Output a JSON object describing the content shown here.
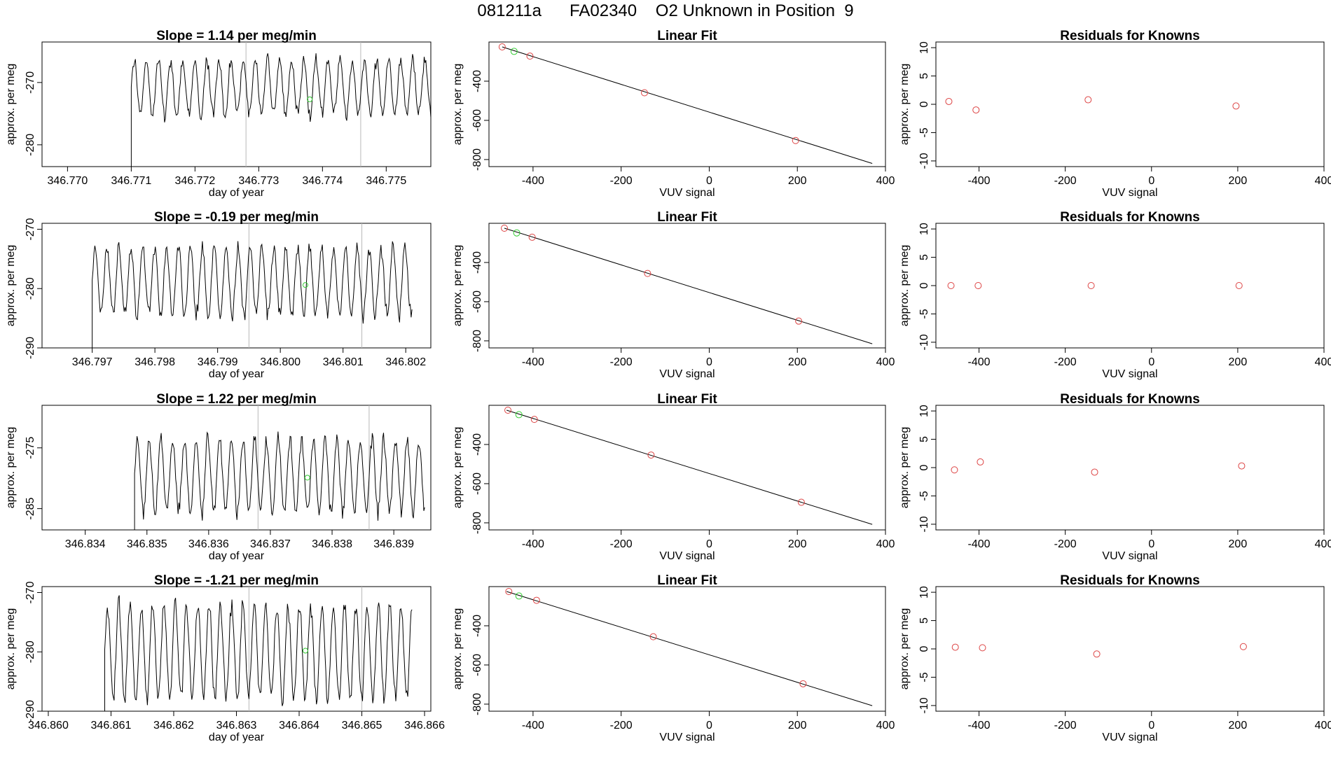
{
  "page": {
    "title": "081211a      FA02340    O2 Unknown in Position  9"
  },
  "labels": {
    "ylabel": "approx. per meg",
    "time_xlabel": "day of year",
    "fit_xlabel": "VUV signal",
    "fit_title": "Linear Fit",
    "resid_title": "Residuals for Knowns"
  },
  "colors": {
    "known": "#dd4444",
    "unknown": "#33cc33",
    "line": "#000000",
    "marker_line": "#b8b8b8"
  },
  "chart_data": [
    {
      "type": "line",
      "panel": "time-series",
      "row": 1,
      "title": "Slope =  1.14  per meg/min",
      "xlabel": "day of year",
      "ylabel": "approx. per meg",
      "xlim": [
        346.7696,
        346.7757
      ],
      "ylim": [
        -283.5,
        -263.5
      ],
      "xticks": [
        346.77,
        346.771,
        346.772,
        346.773,
        346.774,
        346.775
      ],
      "xtick_labels": [
        "346.770",
        "346.771",
        "346.772",
        "346.773",
        "346.774",
        "346.775"
      ],
      "yticks": [
        -270,
        -280
      ],
      "ytick_labels": [
        "-270",
        "-280"
      ],
      "signal": {
        "start": 346.771,
        "end": 346.7757,
        "mean": -270.8,
        "amp": 4.8,
        "period": 0.00019
      },
      "marker_lines": [
        346.7728,
        346.7746
      ],
      "unknown_point": {
        "x": 346.7738,
        "y": -272.7
      }
    },
    {
      "type": "line",
      "panel": "time-series",
      "row": 2,
      "title": "Slope =  -0.19  per meg/min",
      "xlabel": "day of year",
      "ylabel": "approx. per meg",
      "xlim": [
        346.7962,
        346.8024
      ],
      "ylim": [
        -290,
        -269
      ],
      "xticks": [
        346.797,
        346.798,
        346.799,
        346.8,
        346.801,
        346.802
      ],
      "xtick_labels": [
        "346.797",
        "346.798",
        "346.799",
        "346.800",
        "346.801",
        "346.802"
      ],
      "yticks": [
        -270,
        -280,
        -290
      ],
      "ytick_labels": [
        "-270",
        "-280",
        "-290"
      ],
      "signal": {
        "start": 346.797,
        "end": 346.8021,
        "mean": -278.8,
        "amp": 6.2,
        "period": 0.00019
      },
      "marker_lines": [
        346.7995,
        346.8013
      ],
      "unknown_point": {
        "x": 346.8004,
        "y": -279.4
      }
    },
    {
      "type": "line",
      "panel": "time-series",
      "row": 3,
      "title": "Slope =  1.22  per meg/min",
      "xlabel": "day of year",
      "ylabel": "approx. per meg",
      "xlim": [
        346.8333,
        346.8396
      ],
      "ylim": [
        -288.5,
        -268
      ],
      "xticks": [
        346.834,
        346.835,
        346.836,
        346.837,
        346.838,
        346.839
      ],
      "xtick_labels": [
        "346.834",
        "346.835",
        "346.836",
        "346.837",
        "346.838",
        "346.839"
      ],
      "yticks": [
        -275,
        -285
      ],
      "ytick_labels": [
        "-275",
        "-285"
      ],
      "signal": {
        "start": 346.8348,
        "end": 346.8395,
        "mean": -279.5,
        "amp": 6.5,
        "period": 0.00019
      },
      "marker_lines": [
        346.8368,
        346.8386
      ],
      "unknown_point": {
        "x": 346.8376,
        "y": -279.9
      }
    },
    {
      "type": "line",
      "panel": "time-series",
      "row": 4,
      "title": "Slope =  -1.21  per meg/min",
      "xlabel": "day of year",
      "ylabel": "approx. per meg",
      "xlim": [
        346.8599,
        346.8661
      ],
      "ylim": [
        -290,
        -269
      ],
      "xticks": [
        346.86,
        346.861,
        346.862,
        346.863,
        346.864,
        346.865,
        346.866
      ],
      "xtick_labels": [
        "346.860",
        "346.861",
        "346.862",
        "346.863",
        "346.864",
        "346.865",
        "346.866"
      ],
      "yticks": [
        -270,
        -280,
        -290
      ],
      "ytick_labels": [
        "-270",
        "-280",
        "-290"
      ],
      "signal": {
        "start": 346.8609,
        "end": 346.8658,
        "mean": -280.0,
        "amp": 8.5,
        "period": 0.00018
      },
      "marker_lines": [
        346.8632,
        346.865
      ],
      "unknown_point": {
        "x": 346.8641,
        "y": -279.8
      }
    },
    {
      "type": "scatter",
      "panel": "linear-fit",
      "row": 1,
      "title": "Linear Fit",
      "xlabel": "VUV signal",
      "ylabel": "approx. per meg",
      "xlim": [
        -500,
        400
      ],
      "ylim": [
        -836,
        -200
      ],
      "xticks": [
        -400,
        -200,
        0,
        200,
        400
      ],
      "xtick_labels": [
        "-400",
        "-200",
        "0",
        "200",
        "400"
      ],
      "yticks": [
        -400,
        -600,
        -800
      ],
      "ytick_labels": [
        "-400",
        "-600",
        "-800"
      ],
      "line": {
        "x1": -470,
        "y1": -225,
        "x2": 370,
        "y2": -820
      },
      "knowns": [
        {
          "x": -470,
          "y": -225
        },
        {
          "x": -407,
          "y": -272
        },
        {
          "x": -147,
          "y": -459
        },
        {
          "x": 196,
          "y": -703
        }
      ],
      "unknown": {
        "x": -443,
        "y": -248
      }
    },
    {
      "type": "scatter",
      "panel": "linear-fit",
      "row": 2,
      "title": "Linear Fit",
      "xlabel": "VUV signal",
      "ylabel": "approx. per meg",
      "xlim": [
        -500,
        400
      ],
      "ylim": [
        -836,
        -200
      ],
      "xticks": [
        -400,
        -200,
        0,
        200,
        400
      ],
      "xtick_labels": [
        "-400",
        "-200",
        "0",
        "200",
        "400"
      ],
      "yticks": [
        -400,
        -600,
        -800
      ],
      "ytick_labels": [
        "-400",
        "-600",
        "-800"
      ],
      "line": {
        "x1": -465,
        "y1": -225,
        "x2": 370,
        "y2": -815
      },
      "knowns": [
        {
          "x": -465,
          "y": -225
        },
        {
          "x": -402,
          "y": -271
        },
        {
          "x": -140,
          "y": -456
        },
        {
          "x": 203,
          "y": -699
        }
      ],
      "unknown": {
        "x": -437,
        "y": -249
      }
    },
    {
      "type": "scatter",
      "panel": "linear-fit",
      "row": 3,
      "title": "Linear Fit",
      "xlabel": "VUV signal",
      "ylabel": "approx. per meg",
      "xlim": [
        -500,
        400
      ],
      "ylim": [
        -836,
        -200
      ],
      "xticks": [
        -400,
        -200,
        0,
        200,
        400
      ],
      "xtick_labels": [
        "-400",
        "-200",
        "0",
        "200",
        "400"
      ],
      "yticks": [
        -400,
        -600,
        -800
      ],
      "ytick_labels": [
        "-400",
        "-600",
        "-800"
      ],
      "line": {
        "x1": -460,
        "y1": -225,
        "x2": 370,
        "y2": -808
      },
      "knowns": [
        {
          "x": -457,
          "y": -225
        },
        {
          "x": -397,
          "y": -272
        },
        {
          "x": -132,
          "y": -454
        },
        {
          "x": 209,
          "y": -695
        }
      ],
      "unknown": {
        "x": -432,
        "y": -248
      }
    },
    {
      "type": "scatter",
      "panel": "linear-fit",
      "row": 4,
      "title": "Linear Fit",
      "xlabel": "VUV signal",
      "ylabel": "approx. per meg",
      "xlim": [
        -500,
        400
      ],
      "ylim": [
        -836,
        -200
      ],
      "xticks": [
        -400,
        -200,
        0,
        200,
        400
      ],
      "xtick_labels": [
        "-400",
        "-200",
        "0",
        "200",
        "400"
      ],
      "yticks": [
        -400,
        -600,
        -800
      ],
      "ytick_labels": [
        "-400",
        "-600",
        "-800"
      ],
      "line": {
        "x1": -460,
        "y1": -225,
        "x2": 370,
        "y2": -808
      },
      "knowns": [
        {
          "x": -455,
          "y": -225
        },
        {
          "x": -392,
          "y": -270
        },
        {
          "x": -127,
          "y": -456
        },
        {
          "x": 213,
          "y": -696
        }
      ],
      "unknown": {
        "x": -432,
        "y": -248
      }
    },
    {
      "type": "scatter",
      "panel": "residuals",
      "row": 1,
      "title": "Residuals for Knowns",
      "xlabel": "VUV signal",
      "ylabel": "approx. per meg",
      "xlim": [
        -500,
        400
      ],
      "ylim": [
        -11,
        11
      ],
      "xticks": [
        -400,
        -200,
        0,
        200,
        400
      ],
      "xtick_labels": [
        "-400",
        "-200",
        "0",
        "200",
        "400"
      ],
      "yticks": [
        10,
        5,
        0,
        -5,
        -10
      ],
      "ytick_labels": [
        "10",
        "5",
        "0",
        "-5",
        "-10"
      ],
      "points": [
        {
          "x": -470,
          "y": 0.5
        },
        {
          "x": -407,
          "y": -1.0
        },
        {
          "x": -147,
          "y": 0.8
        },
        {
          "x": 196,
          "y": -0.3
        }
      ]
    },
    {
      "type": "scatter",
      "panel": "residuals",
      "row": 2,
      "title": "Residuals for Knowns",
      "xlabel": "VUV signal",
      "ylabel": "approx. per meg",
      "xlim": [
        -500,
        400
      ],
      "ylim": [
        -11,
        11
      ],
      "xticks": [
        -400,
        -200,
        0,
        200,
        400
      ],
      "xtick_labels": [
        "-400",
        "-200",
        "0",
        "200",
        "400"
      ],
      "yticks": [
        10,
        5,
        0,
        -5,
        -10
      ],
      "ytick_labels": [
        "10",
        "5",
        "0",
        "-5",
        "-10"
      ],
      "points": [
        {
          "x": -465,
          "y": 0.0
        },
        {
          "x": -402,
          "y": 0.0
        },
        {
          "x": -140,
          "y": 0.0
        },
        {
          "x": 203,
          "y": 0.0
        }
      ]
    },
    {
      "type": "scatter",
      "panel": "residuals",
      "row": 3,
      "title": "Residuals for Knowns",
      "xlabel": "VUV signal",
      "ylabel": "approx. per meg",
      "xlim": [
        -500,
        400
      ],
      "ylim": [
        -11,
        11
      ],
      "xticks": [
        -400,
        -200,
        0,
        200,
        400
      ],
      "xtick_labels": [
        "-400",
        "-200",
        "0",
        "200",
        "400"
      ],
      "yticks": [
        10,
        5,
        0,
        -5,
        -10
      ],
      "ytick_labels": [
        "10",
        "5",
        "0",
        "-5",
        "-10"
      ],
      "points": [
        {
          "x": -457,
          "y": -0.4
        },
        {
          "x": -397,
          "y": 1.0
        },
        {
          "x": -132,
          "y": -0.8
        },
        {
          "x": 209,
          "y": 0.3
        }
      ]
    },
    {
      "type": "scatter",
      "panel": "residuals",
      "row": 4,
      "title": "Residuals for Knowns",
      "xlabel": "VUV signal",
      "ylabel": "approx. per meg",
      "xlim": [
        -500,
        400
      ],
      "ylim": [
        -11,
        11
      ],
      "xticks": [
        -400,
        -200,
        0,
        200,
        400
      ],
      "xtick_labels": [
        "-400",
        "-200",
        "0",
        "200",
        "400"
      ],
      "yticks": [
        10,
        5,
        0,
        -5,
        -10
      ],
      "ytick_labels": [
        "10",
        "5",
        "0",
        "-5",
        "-10"
      ],
      "points": [
        {
          "x": -455,
          "y": 0.3
        },
        {
          "x": -392,
          "y": 0.2
        },
        {
          "x": -127,
          "y": -0.9
        },
        {
          "x": 213,
          "y": 0.4
        }
      ]
    }
  ]
}
